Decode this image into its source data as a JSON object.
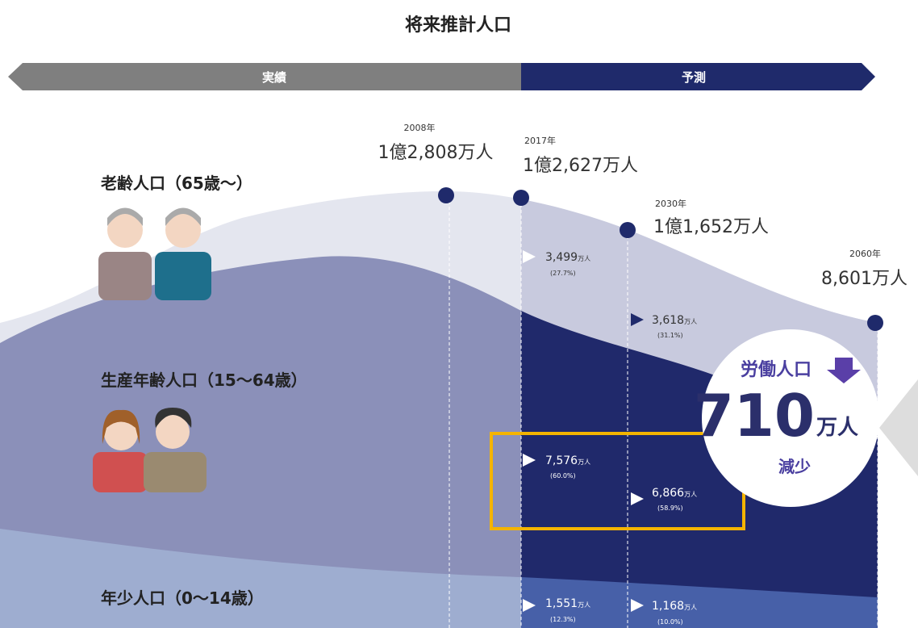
{
  "title": "将来推計人口",
  "timeline": {
    "past": "実績",
    "forecast": "予測"
  },
  "totals": [
    {
      "year": "2008年",
      "value": "1億2,808万人"
    },
    {
      "year": "2017年",
      "value": "1億2,627万人"
    },
    {
      "year": "2030年",
      "value": "1億1,652万人"
    },
    {
      "year": "2060年",
      "value": "8,601万人"
    }
  ],
  "groups": [
    {
      "label": "老齢人口（65歳〜）"
    },
    {
      "label": "生産年齢人口（15〜64歳）"
    },
    {
      "label": "年少人口（0〜14歳）"
    }
  ],
  "figures": [
    {
      "value": "3,499",
      "unit": "万人",
      "share": "(27.7%)"
    },
    {
      "value": "3,618",
      "unit": "万人",
      "share": "(31.1%)"
    },
    {
      "value": "7,576",
      "unit": "万人",
      "share": "(60.0%)"
    },
    {
      "value": "6,866",
      "unit": "万人",
      "share": "(58.9%)"
    },
    {
      "value": "1,551",
      "unit": "万人",
      "share": "(12.3%)"
    },
    {
      "value": "1,168",
      "unit": "万人",
      "share": "(10.0%)"
    }
  ],
  "callout": {
    "heading": "労働人口",
    "number": "710",
    "unit": "万人",
    "note": "減少"
  }
}
